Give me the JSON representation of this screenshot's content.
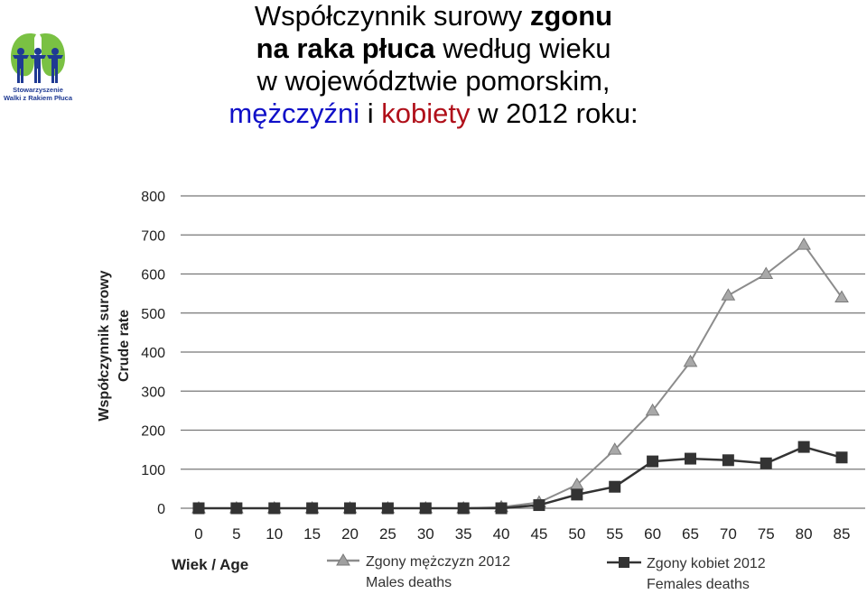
{
  "logo": {
    "icon": "lungs-people-logo",
    "line1": "Stowarzyszenie",
    "line2": "Walki z Rakiem Płuca",
    "colors": {
      "green": "#7ac143",
      "blue": "#1f3a93"
    }
  },
  "title": {
    "l1a": "Współczynnik surowy ",
    "l1b": "zgonu",
    "l2a": "na raka płuca",
    "l2b": " według wieku",
    "l3": "w województwie pomorskim,",
    "l4a": "mężczyźni",
    "l4b": " i ",
    "l4c": "kobiety",
    "l4d": " w 2012 roku:",
    "colors": {
      "men": "#1010c8",
      "women": "#b0101a"
    }
  },
  "chart_data": {
    "type": "line",
    "xlabel": "Wiek / Age",
    "ylabel": "Współczynnik surowy",
    "ylabel2": "Crude rate",
    "x": [
      0,
      5,
      10,
      15,
      20,
      25,
      30,
      35,
      40,
      45,
      50,
      55,
      60,
      65,
      70,
      75,
      80,
      85
    ],
    "ylim": [
      0,
      800
    ],
    "yticks": [
      0,
      100,
      200,
      300,
      400,
      500,
      600,
      700,
      800
    ],
    "grid": true,
    "legend_position": "bottom",
    "series": [
      {
        "name": "Zgony mężczyzn 2012",
        "name2": "Males deaths",
        "marker": "triangle",
        "color": "#8c8c8c",
        "values": [
          0,
          0,
          0,
          0,
          0,
          0,
          0,
          0,
          3,
          15,
          60,
          150,
          250,
          375,
          545,
          600,
          675,
          540
        ]
      },
      {
        "name": "Zgony kobiet 2012",
        "name2": "Females deaths",
        "marker": "square",
        "color": "#333333",
        "values": [
          0,
          0,
          0,
          0,
          0,
          0,
          0,
          0,
          0,
          8,
          35,
          55,
          120,
          127,
          123,
          115,
          157,
          130
        ]
      }
    ]
  }
}
